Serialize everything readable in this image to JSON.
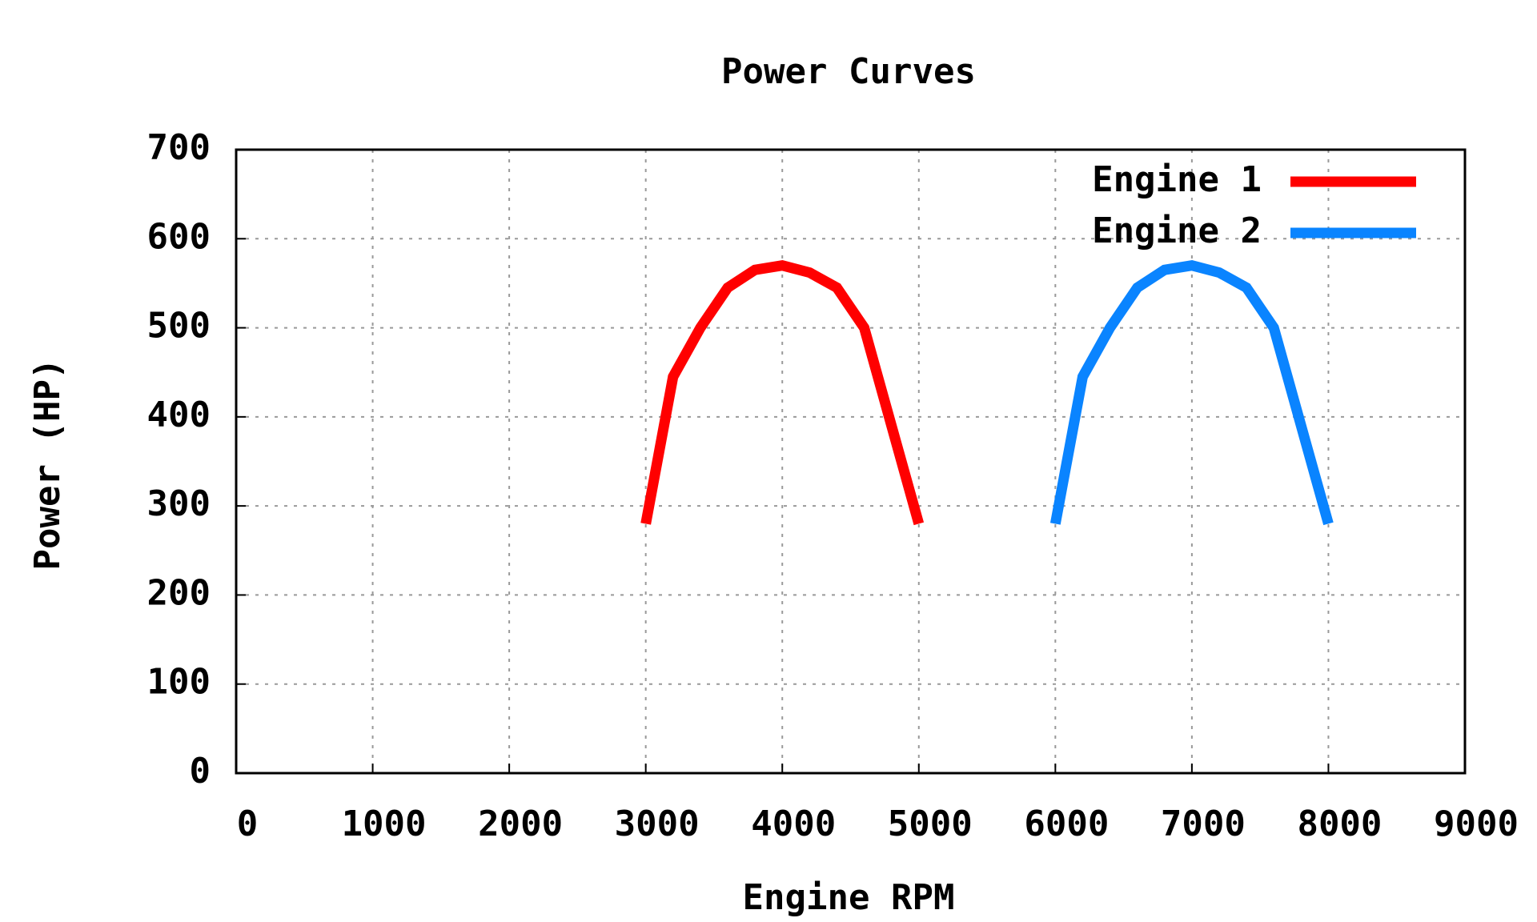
{
  "chart_data": {
    "type": "line",
    "title": "Power Curves",
    "x_label": "Engine RPM",
    "y_label": "Power (HP)",
    "series": [
      {
        "name": "Engine 1",
        "color": "#ff0000",
        "x": [
          3000,
          3200,
          3400,
          3600,
          3800,
          4000,
          4200,
          4400,
          4600,
          4800,
          5000
        ],
        "values": [
          280,
          445,
          500,
          545,
          565,
          570,
          562,
          545,
          500,
          390,
          280
        ]
      },
      {
        "name": "Engine 2",
        "color": "#0a84ff",
        "x": [
          6000,
          6200,
          6400,
          6600,
          6800,
          7000,
          7200,
          7400,
          7600,
          7800,
          8000
        ],
        "values": [
          280,
          445,
          500,
          545,
          565,
          570,
          562,
          545,
          500,
          390,
          280
        ]
      }
    ],
    "xlim": [
      0,
      9000
    ],
    "xticks": [
      0,
      1000,
      2000,
      3000,
      4000,
      5000,
      6000,
      7000,
      8000,
      9000
    ],
    "ylim": [
      0,
      700
    ],
    "yticks": [
      0,
      100,
      200,
      300,
      400,
      500,
      600,
      700
    ],
    "grid": true,
    "legend": "top-right"
  }
}
